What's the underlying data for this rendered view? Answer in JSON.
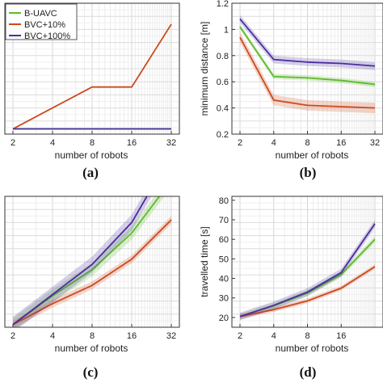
{
  "colors": {
    "B-UAVC": "#5dbb2a",
    "BVC+10%": "#cc4a1c",
    "BVC+100%": "#4b2ca0"
  },
  "legend": [
    "B-UAVC",
    "BVC+10%",
    "BVC+100%"
  ],
  "chart_data": [
    {
      "id": "a",
      "type": "line",
      "panel_label": "(a)",
      "xlabel": "number of robots",
      "ylabel": "",
      "x": [
        2,
        4,
        8,
        16,
        32
      ],
      "xscale": "log2",
      "xticks": [
        "2",
        "4",
        "8",
        "16",
        "32"
      ],
      "yticks": [],
      "ylim": [
        -0.5,
        12
      ],
      "legend": "top-left",
      "series": [
        {
          "name": "B-UAVC",
          "values": [
            0,
            0,
            0,
            0,
            0
          ]
        },
        {
          "name": "BVC+10%",
          "values": [
            0,
            2,
            4,
            4,
            10
          ]
        },
        {
          "name": "BVC+100%",
          "values": [
            0,
            0,
            0,
            0,
            0
          ]
        }
      ]
    },
    {
      "id": "b",
      "type": "line",
      "panel_label": "(b)",
      "xlabel": "number of robots",
      "ylabel": "minimum distance [m]",
      "x": [
        2,
        4,
        8,
        16,
        32
      ],
      "xscale": "log2",
      "xticks": [
        "2",
        "4",
        "8",
        "16",
        "32"
      ],
      "yticks": [
        "0.2",
        "0.4",
        "0.6",
        "0.8",
        "1",
        "1.2"
      ],
      "ylim": [
        0.2,
        1.2
      ],
      "series": [
        {
          "name": "B-UAVC",
          "values": [
            1.02,
            0.64,
            0.63,
            0.61,
            0.58
          ],
          "band": 0.02
        },
        {
          "name": "BVC+10%",
          "values": [
            0.94,
            0.46,
            0.42,
            0.41,
            0.4
          ],
          "band": 0.04
        },
        {
          "name": "BVC+100%",
          "values": [
            1.08,
            0.77,
            0.75,
            0.74,
            0.72
          ],
          "band": 0.03
        }
      ]
    },
    {
      "id": "c",
      "type": "line",
      "panel_label": "(c)",
      "xlabel": "number of robots",
      "ylabel": "",
      "x": [
        2,
        4,
        8,
        16,
        32
      ],
      "xscale": "log2",
      "xticks": [
        "2",
        "4",
        "8",
        "16",
        "32"
      ],
      "yticks": [],
      "ylim": [
        0,
        10
      ],
      "series": [
        {
          "name": "B-UAVC",
          "values": [
            0.2,
            2.4,
            4.4,
            7.2,
            11.2
          ],
          "band": 0.5
        },
        {
          "name": "BVC+10%",
          "values": [
            0.2,
            1.8,
            3.2,
            5.2,
            8.2
          ],
          "band": 0.3
        },
        {
          "name": "BVC+100%",
          "values": [
            0.2,
            2.5,
            4.8,
            8.0,
            13.2
          ],
          "band": 0.6
        }
      ]
    },
    {
      "id": "d",
      "type": "line",
      "panel_label": "(d)",
      "xlabel": "number of robots",
      "ylabel": "travelled time [s]",
      "x": [
        2,
        4,
        8,
        16,
        32
      ],
      "xscale": "log2",
      "xticks": [
        "2",
        "4",
        "8",
        "16"
      ],
      "yticks": [
        "20",
        "30",
        "40",
        "50",
        "60",
        "70",
        "80"
      ],
      "ylim": [
        15,
        82
      ],
      "series": [
        {
          "name": "B-UAVC",
          "values": [
            20.5,
            26,
            32.5,
            42,
            60
          ],
          "band": 1.5
        },
        {
          "name": "BVC+10%",
          "values": [
            20.5,
            24,
            28.5,
            35,
            46
          ],
          "band": 1.2
        },
        {
          "name": "BVC+100%",
          "values": [
            20.5,
            26.2,
            33,
            43,
            68
          ],
          "band": 2.0
        }
      ]
    }
  ]
}
